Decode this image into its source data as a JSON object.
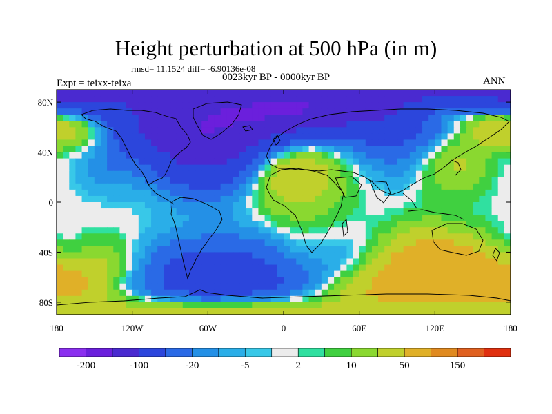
{
  "title": "Height perturbation at 500 hPa (in m)",
  "stats": "rmsd= 11.1524 diff= -6.90136e-08",
  "subtitle": "0023kyr BP - 0000kyr BP",
  "left_label": "Expt = teixx-teixa",
  "right_label": "ANN",
  "axes": {
    "lat_ticks": [
      "80N",
      "40N",
      "0",
      "40S",
      "80S"
    ],
    "lat_values": [
      80,
      40,
      0,
      -40,
      -80
    ],
    "lon_ticks": [
      "180",
      "120W",
      "60W",
      "0",
      "60E",
      "120E",
      "180"
    ],
    "lon_values": [
      -180,
      -120,
      -60,
      0,
      60,
      120,
      180
    ],
    "lat_range": [
      -90,
      90
    ],
    "lon_range": [
      -180,
      180
    ]
  },
  "colorbar": {
    "colors": [
      "#8b2fef",
      "#6b1fdc",
      "#4a2ad0",
      "#2c46dc",
      "#2a6ae6",
      "#2490e6",
      "#2aaee8",
      "#38c8e8",
      "#ececec",
      "#30e0a0",
      "#40d040",
      "#8ad830",
      "#c0d02c",
      "#e0b028",
      "#e08a20",
      "#e06020",
      "#e03010"
    ],
    "labels": [
      "-200",
      "-100",
      "-20",
      "-5",
      "2",
      "10",
      "50",
      "150"
    ]
  },
  "field": {
    "blobs": [
      {
        "lat": 62,
        "lon": -60,
        "radius": 40,
        "value": -110
      },
      {
        "lat": 68,
        "lon": 100,
        "radius": 38,
        "value": -40
      },
      {
        "lat": 62,
        "lon": 30,
        "radius": 36,
        "value": -25
      },
      {
        "lat": 78,
        "lon": -150,
        "radius": 30,
        "value": 30
      },
      {
        "lat": 75,
        "lon": 170,
        "radius": 28,
        "value": 30
      },
      {
        "lat": 40,
        "lon": 10,
        "radius": 42,
        "value": 30
      },
      {
        "lat": 40,
        "lon": 130,
        "radius": 30,
        "value": 20
      },
      {
        "lat": 35,
        "lon": -140,
        "radius": 25,
        "value": -10
      },
      {
        "lat": 42,
        "lon": 170,
        "radius": 18,
        "value": -6
      },
      {
        "lat": -45,
        "lon": -170,
        "radius": 22,
        "value": -6
      },
      {
        "lat": -40,
        "lon": -40,
        "radius": 28,
        "value": -8
      },
      {
        "lat": -55,
        "lon": 110,
        "radius": 30,
        "value": 35
      },
      {
        "lat": -55,
        "lon": 150,
        "radius": 26,
        "value": 20
      },
      {
        "lat": -58,
        "lon": -150,
        "radius": 26,
        "value": 18
      },
      {
        "lat": -62,
        "lon": -80,
        "radius": 30,
        "value": -25
      },
      {
        "lat": -60,
        "lon": -20,
        "radius": 26,
        "value": -20
      },
      {
        "lat": -58,
        "lon": 50,
        "radius": 28,
        "value": -8
      },
      {
        "lat": -85,
        "lon": 0,
        "radius": 30,
        "value": 15
      }
    ]
  }
}
